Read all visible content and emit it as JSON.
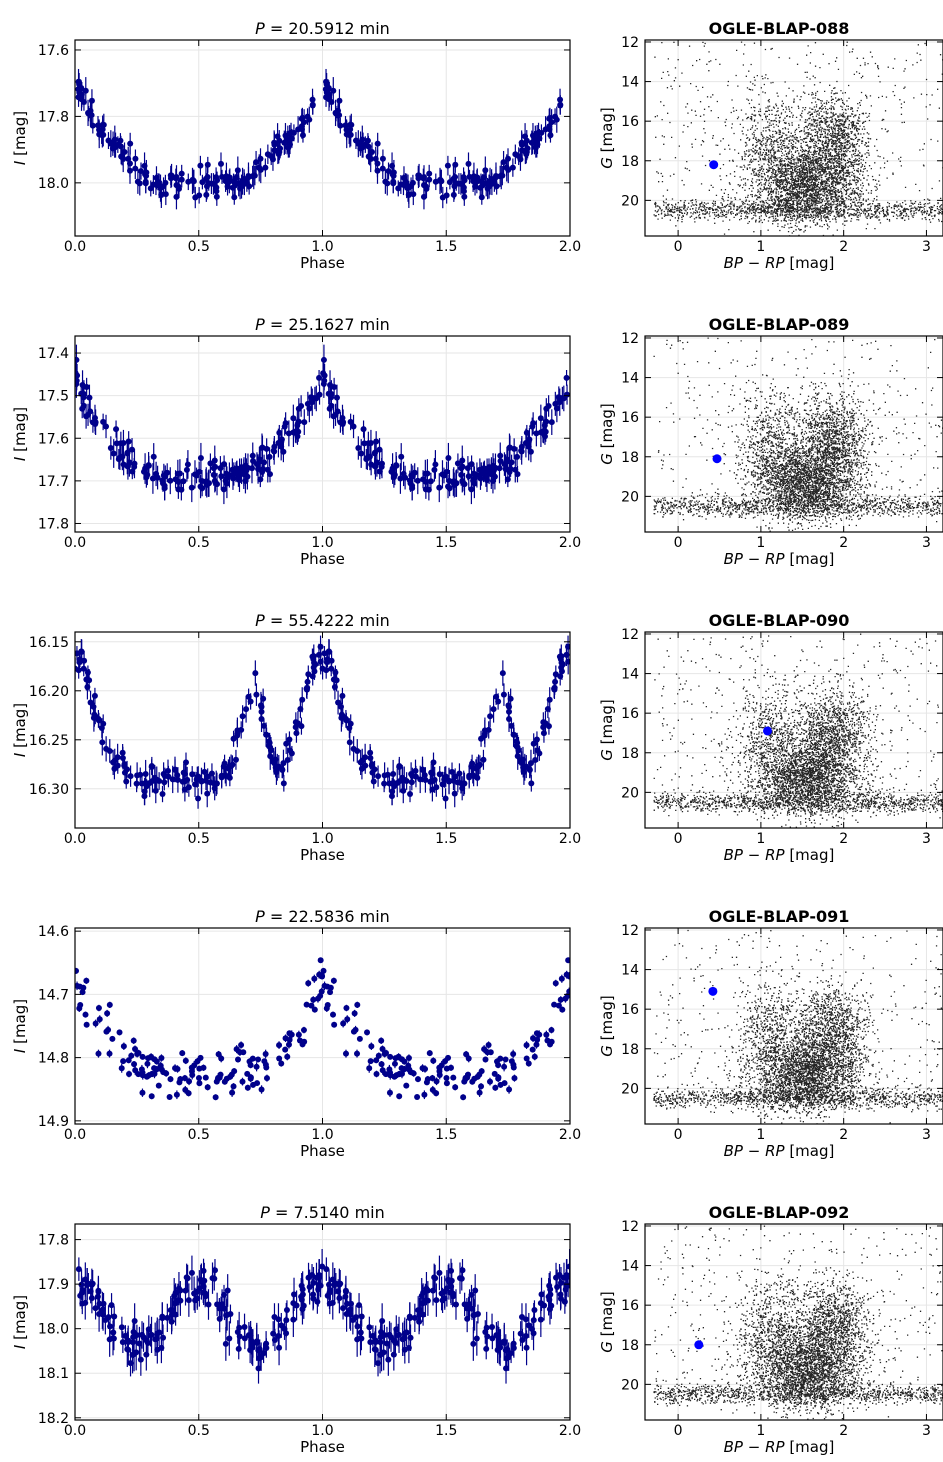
{
  "figure": {
    "light_curve_xlabel": "Phase",
    "light_curve_ylabel": "I [mag]",
    "cmd_xlabel": "BP − RP [mag]",
    "cmd_ylabel": "G [mag]",
    "colors": {
      "points": "#00008b",
      "target": "#0000ff",
      "field": "#000000",
      "grid": "#e6e6e6"
    }
  },
  "chart_data": [
    {
      "type": "scatter",
      "panel": "light-curve",
      "row": 0,
      "title_prefix": "P",
      "title_value": "= 20.5912 min",
      "xlim": [
        0,
        2
      ],
      "ylim": [
        18.16,
        17.57
      ],
      "xticks": [
        "0.0",
        "0.5",
        "1.0",
        "1.5",
        "2.0"
      ],
      "yticks": [
        "17.6",
        "17.8",
        "18.0"
      ],
      "shape": {
        "min": 17.65,
        "max": 18.0,
        "min_phase": 0.0,
        "type": "sharp"
      },
      "n_points": 170,
      "scatter": 0.035,
      "errorbar": 0.035,
      "grid": true
    },
    {
      "type": "scatter",
      "panel": "cmd",
      "row": 0,
      "title": "OGLE-BLAP-088",
      "xlim": [
        -0.4,
        3.2
      ],
      "ylim": [
        21.8,
        11.9
      ],
      "xticks": [
        "0",
        "1",
        "2",
        "3"
      ],
      "yticks": [
        "12",
        "14",
        "16",
        "18",
        "20"
      ],
      "target": {
        "x": 0.43,
        "y": 18.2
      },
      "field_n": 5500,
      "grid": true
    },
    {
      "type": "scatter",
      "panel": "light-curve",
      "row": 1,
      "title_prefix": "P",
      "title_value": "= 25.1627 min",
      "xlim": [
        0,
        2
      ],
      "ylim": [
        17.82,
        17.36
      ],
      "xticks": [
        "0.0",
        "0.5",
        "1.0",
        "1.5",
        "2.0"
      ],
      "yticks": [
        "17.4",
        "17.5",
        "17.6",
        "17.7",
        "17.8"
      ],
      "shape": {
        "min": 17.43,
        "max": 17.69,
        "min_phase": 0.0,
        "type": "sharp"
      },
      "n_points": 170,
      "scatter": 0.03,
      "errorbar": 0.03,
      "grid": true
    },
    {
      "type": "scatter",
      "panel": "cmd",
      "row": 1,
      "title": "OGLE-BLAP-089",
      "xlim": [
        -0.4,
        3.2
      ],
      "ylim": [
        21.8,
        11.9
      ],
      "xticks": [
        "0",
        "1",
        "2",
        "3"
      ],
      "yticks": [
        "12",
        "14",
        "16",
        "18",
        "20"
      ],
      "target": {
        "x": 0.47,
        "y": 18.1
      },
      "field_n": 5500,
      "grid": true
    },
    {
      "type": "scatter",
      "panel": "light-curve",
      "row": 2,
      "title_prefix": "P",
      "title_value": "= 55.4222 min",
      "xlim": [
        0,
        2
      ],
      "ylim": [
        16.34,
        16.14
      ],
      "xticks": [
        "0.0",
        "0.5",
        "1.0",
        "1.5",
        "2.0"
      ],
      "yticks": [
        "16.15",
        "16.20",
        "16.25",
        "16.30"
      ],
      "shape": {
        "min": 16.165,
        "max": 16.29,
        "min_phase": 0.0,
        "type": "double"
      },
      "n_points": 170,
      "scatter": 0.012,
      "errorbar": 0.012,
      "grid": true
    },
    {
      "type": "scatter",
      "panel": "cmd",
      "row": 2,
      "title": "OGLE-BLAP-090",
      "xlim": [
        -0.4,
        3.2
      ],
      "ylim": [
        21.8,
        11.9
      ],
      "xticks": [
        "0",
        "1",
        "2",
        "3"
      ],
      "yticks": [
        "12",
        "14",
        "16",
        "18",
        "20"
      ],
      "target": {
        "x": 1.08,
        "y": 16.9
      },
      "field_n": 5500,
      "grid": true
    },
    {
      "type": "scatter",
      "panel": "light-curve",
      "row": 3,
      "title_prefix": "P",
      "title_value": "= 22.5836 min",
      "xlim": [
        0,
        2
      ],
      "ylim": [
        14.905,
        14.595
      ],
      "xticks": [
        "0.0",
        "0.5",
        "1.0",
        "1.5",
        "2.0"
      ],
      "yticks": [
        "14.6",
        "14.7",
        "14.8",
        "14.9"
      ],
      "shape": {
        "min": 14.66,
        "max": 14.83,
        "min_phase": 0.0,
        "type": "sharp"
      },
      "n_points": 150,
      "scatter": 0.035,
      "errorbar": 0.006,
      "grid": true
    },
    {
      "type": "scatter",
      "panel": "cmd",
      "row": 3,
      "title": "OGLE-BLAP-091",
      "xlim": [
        -0.4,
        3.2
      ],
      "ylim": [
        21.8,
        11.9
      ],
      "xticks": [
        "0",
        "1",
        "2",
        "3"
      ],
      "yticks": [
        "12",
        "14",
        "16",
        "18",
        "20"
      ],
      "target": {
        "x": 0.42,
        "y": 15.1
      },
      "field_n": 5500,
      "grid": true
    },
    {
      "type": "scatter",
      "panel": "light-curve",
      "row": 4,
      "title_prefix": "P",
      "title_value": "= 7.5140 min",
      "xlim": [
        0,
        2
      ],
      "ylim": [
        18.205,
        17.765
      ],
      "xticks": [
        "0.0",
        "0.5",
        "1.0",
        "1.5",
        "2.0"
      ],
      "yticks": [
        "17.8",
        "17.9",
        "18.0",
        "18.1",
        "18.2"
      ],
      "shape": {
        "min": 17.9,
        "max": 18.04,
        "min_phase": 0.0,
        "type": "smooth"
      },
      "n_points": 180,
      "scatter": 0.035,
      "errorbar": 0.035,
      "grid": true
    },
    {
      "type": "scatter",
      "panel": "cmd",
      "row": 4,
      "title": "OGLE-BLAP-092",
      "xlim": [
        -0.4,
        3.2
      ],
      "ylim": [
        21.8,
        11.9
      ],
      "xticks": [
        "0",
        "1",
        "2",
        "3"
      ],
      "yticks": [
        "12",
        "14",
        "16",
        "18",
        "20"
      ],
      "target": {
        "x": 0.25,
        "y": 18.0
      },
      "field_n": 5500,
      "grid": true
    }
  ]
}
